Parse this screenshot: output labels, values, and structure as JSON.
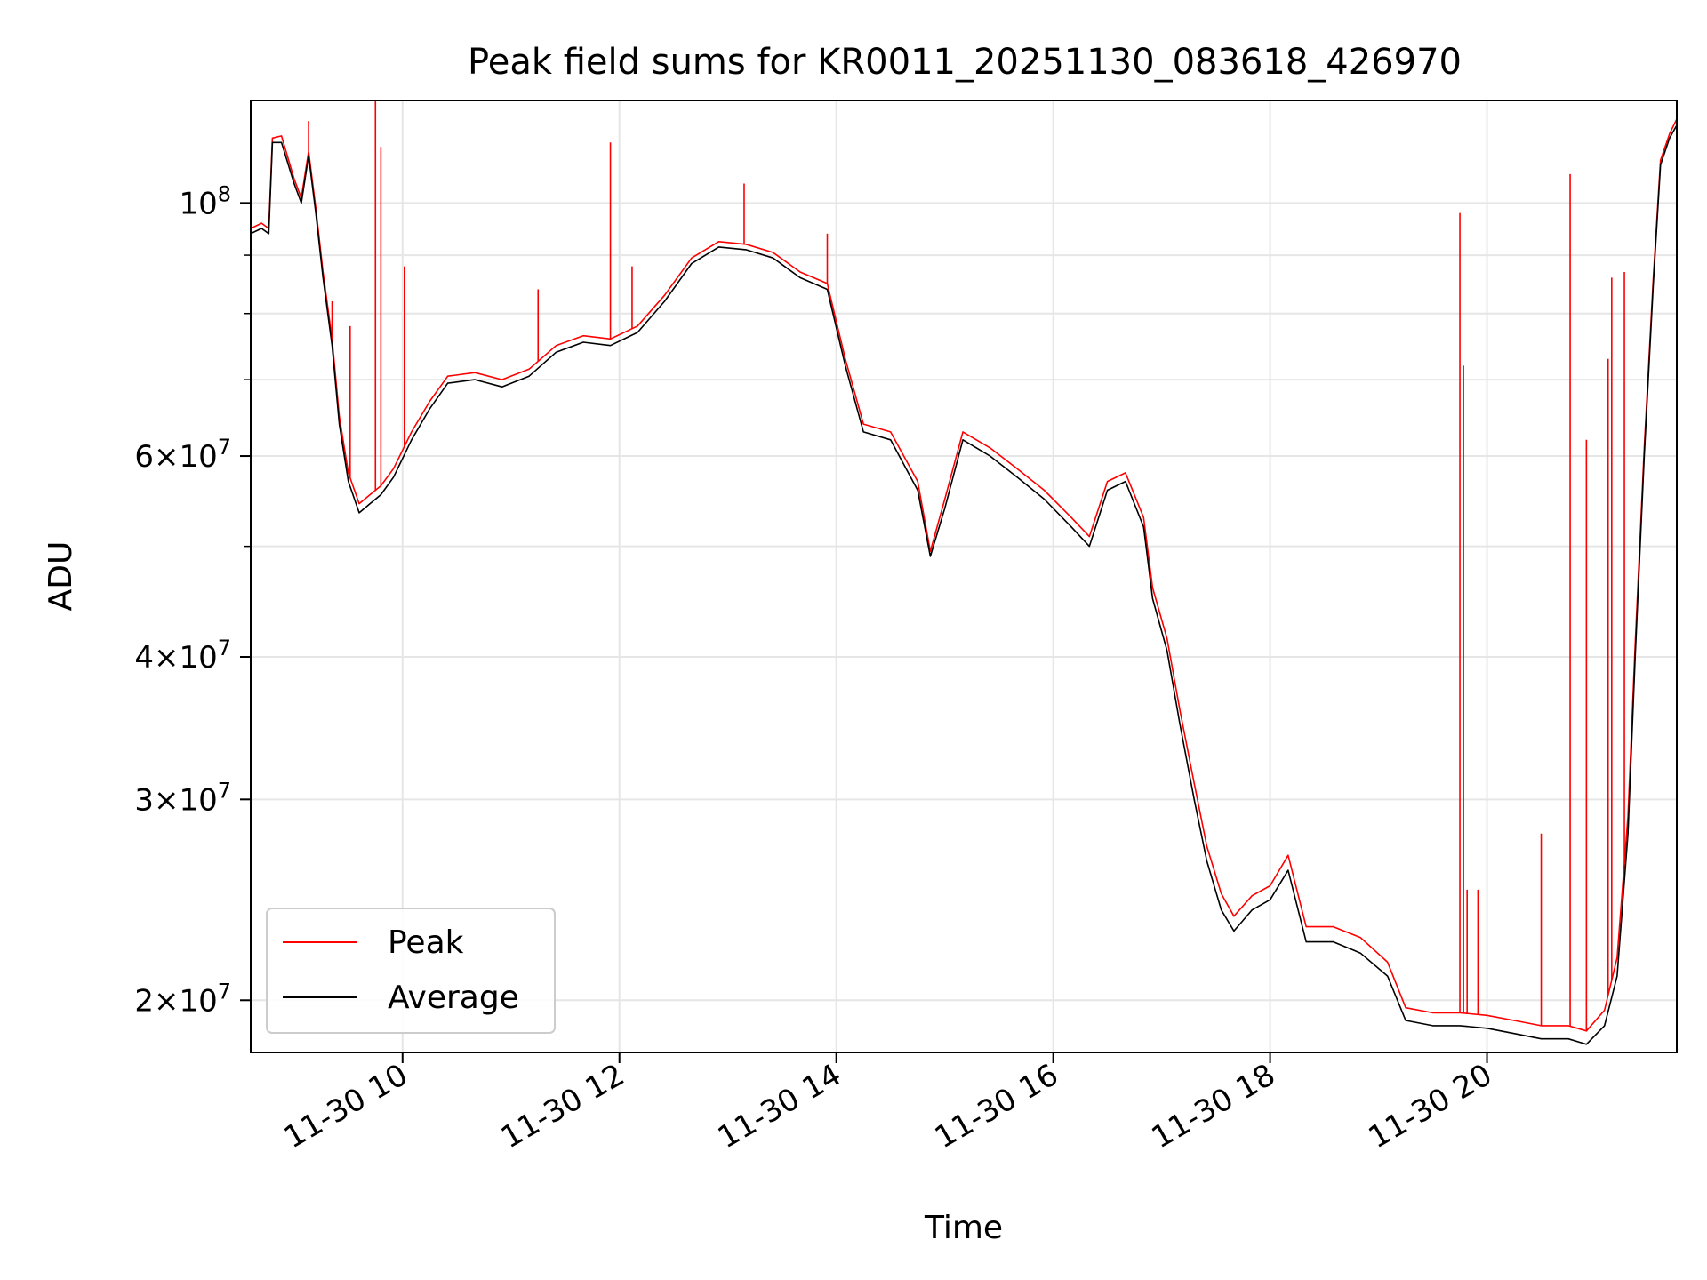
{
  "chart_data": {
    "type": "line",
    "title": "Peak field sums for KR0011_20251130_083618_426970",
    "xlabel": "Time",
    "ylabel": "ADU",
    "xlim": [
      "2025-11-30 08:36",
      "2025-11-30 21:45"
    ],
    "ylim": [
      18000000,
      123000000
    ],
    "yscale": "log",
    "grid": true,
    "legend": "lower-left",
    "x_ticks": [
      {
        "x": "2025-11-30 10:00",
        "label": "11-30 10"
      },
      {
        "x": "2025-11-30 12:00",
        "label": "11-30 12"
      },
      {
        "x": "2025-11-30 14:00",
        "label": "11-30 14"
      },
      {
        "x": "2025-11-30 16:00",
        "label": "11-30 16"
      },
      {
        "x": "2025-11-30 18:00",
        "label": "11-30 18"
      },
      {
        "x": "2025-11-30 20:00",
        "label": "11-30 20"
      }
    ],
    "y_ticks": [
      {
        "y": 20000000,
        "coef": "2",
        "exp": "7"
      },
      {
        "y": 30000000,
        "coef": "3",
        "exp": "7"
      },
      {
        "y": 40000000,
        "coef": "4",
        "exp": "7"
      },
      {
        "y": 60000000,
        "coef": "6",
        "exp": "7"
      },
      {
        "y": 100000000,
        "coef": "",
        "exp": "8"
      }
    ],
    "y_minor_ticks": [
      50000000,
      70000000,
      80000000,
      90000000
    ],
    "series": [
      {
        "name": "Average",
        "color": "#000000",
        "points": [
          [
            "2025-11-30 08:36",
            94000000
          ],
          [
            "2025-11-30 08:42",
            95000000
          ],
          [
            "2025-11-30 08:46",
            94000000
          ],
          [
            "2025-11-30 08:48",
            113000000
          ],
          [
            "2025-11-30 08:53",
            113000000
          ],
          [
            "2025-11-30 09:00",
            104000000
          ],
          [
            "2025-11-30 09:04",
            100000000
          ],
          [
            "2025-11-30 09:08",
            110000000
          ],
          [
            "2025-11-30 09:12",
            98000000
          ],
          [
            "2025-11-30 09:16",
            86000000
          ],
          [
            "2025-11-30 09:21",
            75000000
          ],
          [
            "2025-11-30 09:25",
            64000000
          ],
          [
            "2025-11-30 09:30",
            57000000
          ],
          [
            "2025-11-30 09:36",
            53500000
          ],
          [
            "2025-11-30 09:42",
            54500000
          ],
          [
            "2025-11-30 09:48",
            55500000
          ],
          [
            "2025-11-30 09:55",
            57500000
          ],
          [
            "2025-11-30 10:05",
            62000000
          ],
          [
            "2025-11-30 10:15",
            66000000
          ],
          [
            "2025-11-30 10:25",
            69500000
          ],
          [
            "2025-11-30 10:40",
            70000000
          ],
          [
            "2025-11-30 10:55",
            69000000
          ],
          [
            "2025-11-30 11:10",
            70500000
          ],
          [
            "2025-11-30 11:25",
            74000000
          ],
          [
            "2025-11-30 11:40",
            75500000
          ],
          [
            "2025-11-30 11:55",
            75000000
          ],
          [
            "2025-11-30 12:10",
            77000000
          ],
          [
            "2025-11-30 12:25",
            82000000
          ],
          [
            "2025-11-30 12:40",
            88500000
          ],
          [
            "2025-11-30 12:55",
            91500000
          ],
          [
            "2025-11-30 13:10",
            91000000
          ],
          [
            "2025-11-30 13:25",
            89500000
          ],
          [
            "2025-11-30 13:40",
            86000000
          ],
          [
            "2025-11-30 13:55",
            84000000
          ],
          [
            "2025-11-30 14:05",
            72000000
          ],
          [
            "2025-11-30 14:15",
            63000000
          ],
          [
            "2025-11-30 14:30",
            62000000
          ],
          [
            "2025-11-30 14:45",
            56000000
          ],
          [
            "2025-11-30 14:52",
            49000000
          ],
          [
            "2025-11-30 15:00",
            54000000
          ],
          [
            "2025-11-30 15:10",
            62000000
          ],
          [
            "2025-11-30 15:25",
            60000000
          ],
          [
            "2025-11-30 15:40",
            57500000
          ],
          [
            "2025-11-30 15:55",
            55000000
          ],
          [
            "2025-11-30 16:10",
            52000000
          ],
          [
            "2025-11-30 16:20",
            50000000
          ],
          [
            "2025-11-30 16:30",
            56000000
          ],
          [
            "2025-11-30 16:40",
            57000000
          ],
          [
            "2025-11-30 16:50",
            52000000
          ],
          [
            "2025-11-30 16:55",
            45000000
          ],
          [
            "2025-11-30 17:03",
            40500000
          ],
          [
            "2025-11-30 17:10",
            35000000
          ],
          [
            "2025-11-30 17:18",
            30000000
          ],
          [
            "2025-11-30 17:25",
            26500000
          ],
          [
            "2025-11-30 17:33",
            24000000
          ],
          [
            "2025-11-30 17:40",
            23000000
          ],
          [
            "2025-11-30 17:50",
            24000000
          ],
          [
            "2025-11-30 18:00",
            24500000
          ],
          [
            "2025-11-30 18:10",
            26000000
          ],
          [
            "2025-11-30 18:20",
            22500000
          ],
          [
            "2025-11-30 18:35",
            22500000
          ],
          [
            "2025-11-30 18:50",
            22000000
          ],
          [
            "2025-11-30 19:05",
            21000000
          ],
          [
            "2025-11-30 19:15",
            19200000
          ],
          [
            "2025-11-30 19:30",
            19000000
          ],
          [
            "2025-11-30 19:45",
            19000000
          ],
          [
            "2025-11-30 20:00",
            18900000
          ],
          [
            "2025-11-30 20:15",
            18700000
          ],
          [
            "2025-11-30 20:30",
            18500000
          ],
          [
            "2025-11-30 20:45",
            18500000
          ],
          [
            "2025-11-30 20:55",
            18300000
          ],
          [
            "2025-11-30 21:05",
            19000000
          ],
          [
            "2025-11-30 21:12",
            21000000
          ],
          [
            "2025-11-30 21:18",
            28000000
          ],
          [
            "2025-11-30 21:22",
            40000000
          ],
          [
            "2025-11-30 21:27",
            60000000
          ],
          [
            "2025-11-30 21:32",
            85000000
          ],
          [
            "2025-11-30 21:36",
            108000000
          ],
          [
            "2025-11-30 21:41",
            114000000
          ],
          [
            "2025-11-30 21:45",
            117000000
          ]
        ]
      },
      {
        "name": "Peak",
        "color": "#ff0000",
        "points": [
          [
            "2025-11-30 08:36",
            95000000
          ],
          [
            "2025-11-30 08:42",
            96000000
          ],
          [
            "2025-11-30 08:46",
            95000000
          ],
          [
            "2025-11-30 08:48",
            114000000
          ],
          [
            "2025-11-30 08:53",
            114500000
          ],
          [
            "2025-11-30 09:00",
            105000000
          ],
          [
            "2025-11-30 09:04",
            101000000
          ],
          [
            "2025-11-30 09:08",
            111000000
          ],
          [
            "2025-11-30 09:12",
            99000000
          ],
          [
            "2025-11-30 09:16",
            87000000
          ],
          [
            "2025-11-30 09:21",
            76000000
          ],
          [
            "2025-11-30 09:25",
            65000000
          ],
          [
            "2025-11-30 09:30",
            58000000
          ],
          [
            "2025-11-30 09:36",
            54500000
          ],
          [
            "2025-11-30 09:42",
            55500000
          ],
          [
            "2025-11-30 09:48",
            56500000
          ],
          [
            "2025-11-30 09:55",
            58500000
          ],
          [
            "2025-11-30 10:05",
            63000000
          ],
          [
            "2025-11-30 10:15",
            67000000
          ],
          [
            "2025-11-30 10:25",
            70500000
          ],
          [
            "2025-11-30 10:40",
            71000000
          ],
          [
            "2025-11-30 10:55",
            70000000
          ],
          [
            "2025-11-30 11:10",
            71500000
          ],
          [
            "2025-11-30 11:25",
            75000000
          ],
          [
            "2025-11-30 11:40",
            76500000
          ],
          [
            "2025-11-30 11:55",
            76000000
          ],
          [
            "2025-11-30 12:10",
            78000000
          ],
          [
            "2025-11-30 12:25",
            83000000
          ],
          [
            "2025-11-30 12:40",
            89500000
          ],
          [
            "2025-11-30 12:55",
            92500000
          ],
          [
            "2025-11-30 13:10",
            92000000
          ],
          [
            "2025-11-30 13:25",
            90500000
          ],
          [
            "2025-11-30 13:40",
            87000000
          ],
          [
            "2025-11-30 13:55",
            85000000
          ],
          [
            "2025-11-30 14:05",
            73000000
          ],
          [
            "2025-11-30 14:15",
            64000000
          ],
          [
            "2025-11-30 14:30",
            63000000
          ],
          [
            "2025-11-30 14:45",
            57000000
          ],
          [
            "2025-11-30 14:52",
            49500000
          ],
          [
            "2025-11-30 15:00",
            55000000
          ],
          [
            "2025-11-30 15:10",
            63000000
          ],
          [
            "2025-11-30 15:25",
            61000000
          ],
          [
            "2025-11-30 15:40",
            58500000
          ],
          [
            "2025-11-30 15:55",
            56000000
          ],
          [
            "2025-11-30 16:10",
            53000000
          ],
          [
            "2025-11-30 16:20",
            51000000
          ],
          [
            "2025-11-30 16:30",
            57000000
          ],
          [
            "2025-11-30 16:40",
            58000000
          ],
          [
            "2025-11-30 16:50",
            53000000
          ],
          [
            "2025-11-30 16:55",
            46000000
          ],
          [
            "2025-11-30 17:03",
            41500000
          ],
          [
            "2025-11-30 17:10",
            36000000
          ],
          [
            "2025-11-30 17:18",
            31000000
          ],
          [
            "2025-11-30 17:25",
            27300000
          ],
          [
            "2025-11-30 17:33",
            24800000
          ],
          [
            "2025-11-30 17:40",
            23700000
          ],
          [
            "2025-11-30 17:50",
            24700000
          ],
          [
            "2025-11-30 18:00",
            25200000
          ],
          [
            "2025-11-30 18:10",
            26800000
          ],
          [
            "2025-11-30 18:20",
            23200000
          ],
          [
            "2025-11-30 18:35",
            23200000
          ],
          [
            "2025-11-30 18:50",
            22700000
          ],
          [
            "2025-11-30 19:05",
            21600000
          ],
          [
            "2025-11-30 19:15",
            19700000
          ],
          [
            "2025-11-30 19:30",
            19500000
          ],
          [
            "2025-11-30 19:45",
            19500000
          ],
          [
            "2025-11-30 20:00",
            19400000
          ],
          [
            "2025-11-30 20:15",
            19200000
          ],
          [
            "2025-11-30 20:30",
            19000000
          ],
          [
            "2025-11-30 20:45",
            19000000
          ],
          [
            "2025-11-30 20:55",
            18800000
          ],
          [
            "2025-11-30 21:05",
            19600000
          ],
          [
            "2025-11-30 21:12",
            21800000
          ],
          [
            "2025-11-30 21:18",
            29000000
          ],
          [
            "2025-11-30 21:22",
            41000000
          ],
          [
            "2025-11-30 21:27",
            61000000
          ],
          [
            "2025-11-30 21:32",
            86000000
          ],
          [
            "2025-11-30 21:36",
            109000000
          ],
          [
            "2025-11-30 21:41",
            115000000
          ],
          [
            "2025-11-30 21:45",
            118500000
          ]
        ],
        "spikes": [
          [
            "2025-11-30 09:08",
            118000000
          ],
          [
            "2025-11-30 09:21",
            82000000
          ],
          [
            "2025-11-30 09:31",
            78000000
          ],
          [
            "2025-11-30 09:45",
            123000000
          ],
          [
            "2025-11-30 09:48",
            112000000
          ],
          [
            "2025-11-30 10:01",
            88000000
          ],
          [
            "2025-11-30 11:15",
            84000000
          ],
          [
            "2025-11-30 11:55",
            113000000
          ],
          [
            "2025-11-30 12:07",
            88000000
          ],
          [
            "2025-11-30 13:09",
            104000000
          ],
          [
            "2025-11-30 13:55",
            94000000
          ],
          [
            "2025-11-30 19:45",
            98000000
          ],
          [
            "2025-11-30 19:47",
            72000000
          ],
          [
            "2025-11-30 19:49",
            25000000
          ],
          [
            "2025-11-30 19:55",
            25000000
          ],
          [
            "2025-11-30 20:30",
            28000000
          ],
          [
            "2025-11-30 20:46",
            106000000
          ],
          [
            "2025-11-30 20:55",
            62000000
          ],
          [
            "2025-11-30 21:07",
            73000000
          ],
          [
            "2025-11-30 21:09",
            86000000
          ],
          [
            "2025-11-30 21:16",
            87000000
          ]
        ]
      }
    ]
  }
}
